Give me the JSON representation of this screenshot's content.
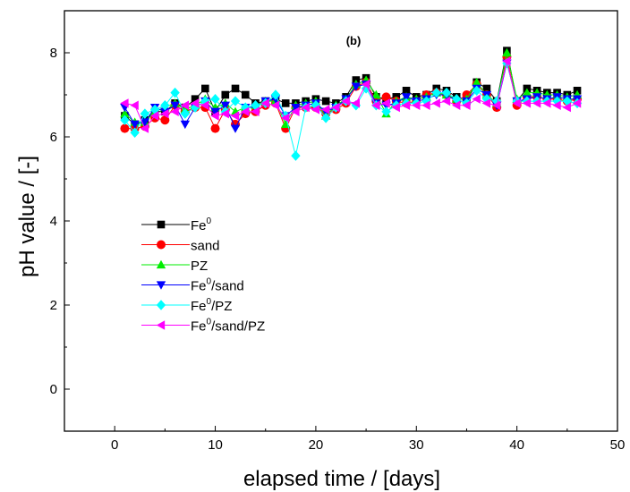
{
  "chart_data": {
    "type": "scatter",
    "annotation": "(b)",
    "xlabel": "elapsed time / [days]",
    "ylabel": "pH value / [-]",
    "xlim": [
      -5,
      50
    ],
    "ylim": [
      -1,
      9
    ],
    "xticks": [
      0,
      10,
      20,
      30,
      40,
      50
    ],
    "yticks": [
      0,
      2,
      4,
      6,
      8
    ],
    "legend_position": "lower-left",
    "series": [
      {
        "name": "Fe",
        "sup": "0",
        "suffix": "",
        "marker": "square",
        "color": "#000000",
        "x": [
          1,
          2,
          3,
          4,
          5,
          6,
          7,
          8,
          9,
          10,
          11,
          12,
          13,
          14,
          15,
          16,
          17,
          18,
          19,
          20,
          21,
          22,
          23,
          24,
          25,
          26,
          27,
          28,
          29,
          30,
          31,
          32,
          33,
          34,
          35,
          36,
          37,
          38,
          39,
          40,
          41,
          42,
          43,
          44,
          45,
          46
        ],
        "y": [
          6.5,
          6.3,
          6.4,
          6.6,
          6.6,
          6.8,
          6.7,
          6.9,
          7.15,
          6.6,
          7.0,
          7.15,
          7.0,
          6.8,
          6.85,
          6.9,
          6.8,
          6.8,
          6.85,
          6.9,
          6.85,
          6.8,
          6.95,
          7.35,
          7.4,
          6.95,
          6.9,
          6.95,
          7.1,
          6.95,
          7.0,
          7.15,
          7.1,
          6.95,
          6.85,
          7.3,
          7.15,
          6.85,
          8.05,
          6.85,
          7.15,
          7.1,
          7.05,
          7.05,
          7.0,
          7.1
        ]
      },
      {
        "name": "sand",
        "sup": "",
        "suffix": "",
        "marker": "circle",
        "color": "#ff0000",
        "x": [
          1,
          2,
          3,
          4,
          5,
          6,
          7,
          8,
          9,
          10,
          11,
          12,
          13,
          14,
          15,
          16,
          17,
          18,
          19,
          20,
          21,
          22,
          23,
          24,
          25,
          26,
          27,
          28,
          29,
          30,
          31,
          32,
          33,
          34,
          35,
          36,
          37,
          38,
          39,
          40,
          41,
          42,
          43,
          44,
          45,
          46
        ],
        "y": [
          6.2,
          6.2,
          6.25,
          6.45,
          6.4,
          6.75,
          6.6,
          6.7,
          6.7,
          6.2,
          6.65,
          6.3,
          6.55,
          6.6,
          6.75,
          6.8,
          6.2,
          6.7,
          6.7,
          6.7,
          6.55,
          6.65,
          6.8,
          7.2,
          7.3,
          6.85,
          6.95,
          6.85,
          6.8,
          6.85,
          7.0,
          7.05,
          7.0,
          6.85,
          7.0,
          7.25,
          7.0,
          6.7,
          7.9,
          6.75,
          6.95,
          6.95,
          6.9,
          6.9,
          6.85,
          6.9
        ]
      },
      {
        "name": "PZ",
        "sup": "",
        "suffix": "",
        "marker": "triangle-up",
        "color": "#00ee00",
        "x": [
          1,
          2,
          3,
          4,
          5,
          6,
          7,
          8,
          9,
          10,
          11,
          12,
          13,
          14,
          15,
          16,
          17,
          18,
          19,
          20,
          21,
          22,
          23,
          24,
          25,
          26,
          27,
          28,
          29,
          30,
          31,
          32,
          33,
          34,
          35,
          36,
          37,
          38,
          39,
          40,
          41,
          42,
          43,
          44,
          45,
          46
        ],
        "y": [
          6.55,
          6.35,
          6.35,
          6.6,
          6.7,
          6.8,
          6.65,
          6.75,
          6.9,
          6.7,
          6.8,
          6.6,
          6.7,
          6.75,
          6.85,
          6.85,
          6.3,
          6.75,
          6.8,
          6.85,
          6.5,
          6.75,
          6.9,
          7.25,
          7.35,
          7.0,
          6.55,
          6.85,
          6.95,
          6.9,
          6.95,
          7.05,
          7.0,
          6.9,
          6.9,
          7.3,
          7.0,
          6.8,
          8.0,
          6.9,
          7.05,
          7.05,
          7.0,
          7.0,
          6.95,
          7.0
        ]
      },
      {
        "name": "Fe",
        "sup": "0",
        "suffix": "/sand",
        "marker": "triangle-down",
        "color": "#0000ff",
        "x": [
          1,
          2,
          3,
          4,
          5,
          6,
          7,
          8,
          9,
          10,
          11,
          12,
          13,
          14,
          15,
          16,
          17,
          18,
          19,
          20,
          21,
          22,
          23,
          24,
          25,
          26,
          27,
          28,
          29,
          30,
          31,
          32,
          33,
          34,
          35,
          36,
          37,
          38,
          39,
          40,
          41,
          42,
          43,
          44,
          45,
          46
        ],
        "y": [
          6.7,
          6.3,
          6.35,
          6.7,
          6.6,
          6.75,
          6.3,
          6.7,
          6.85,
          6.6,
          6.75,
          6.2,
          6.7,
          6.7,
          6.85,
          6.9,
          6.5,
          6.7,
          6.75,
          6.8,
          6.6,
          6.7,
          6.9,
          7.2,
          7.25,
          6.8,
          6.75,
          6.8,
          6.95,
          6.85,
          6.9,
          7.0,
          7.0,
          6.85,
          6.85,
          7.15,
          7.0,
          6.75,
          7.75,
          6.85,
          6.9,
          6.95,
          6.9,
          6.95,
          6.9,
          6.9
        ]
      },
      {
        "name": "Fe",
        "sup": "0",
        "suffix": "/PZ",
        "marker": "diamond",
        "color": "#00ffff",
        "x": [
          1,
          2,
          3,
          4,
          5,
          6,
          7,
          8,
          9,
          10,
          11,
          12,
          13,
          14,
          15,
          16,
          17,
          18,
          19,
          20,
          21,
          22,
          23,
          24,
          25,
          26,
          27,
          28,
          29,
          30,
          31,
          32,
          33,
          34,
          35,
          36,
          37,
          38,
          39,
          40,
          41,
          42,
          43,
          44,
          45,
          46
        ],
        "y": [
          6.4,
          6.1,
          6.55,
          6.65,
          6.75,
          7.05,
          6.55,
          6.7,
          6.85,
          6.9,
          6.6,
          6.85,
          6.7,
          6.75,
          6.8,
          7.0,
          6.5,
          5.55,
          6.7,
          6.75,
          6.45,
          6.7,
          6.85,
          6.75,
          7.15,
          6.75,
          6.6,
          6.75,
          6.8,
          6.8,
          6.85,
          7.05,
          7.05,
          6.9,
          6.8,
          7.1,
          6.9,
          6.85,
          7.75,
          6.85,
          6.85,
          6.85,
          6.85,
          6.85,
          6.85,
          6.8
        ]
      },
      {
        "name": "Fe",
        "sup": "0",
        "suffix": "/sand/PZ",
        "marker": "triangle-left",
        "color": "#ff00ff",
        "x": [
          1,
          2,
          3,
          4,
          5,
          6,
          7,
          8,
          9,
          10,
          11,
          12,
          13,
          14,
          15,
          16,
          17,
          18,
          19,
          20,
          21,
          22,
          23,
          24,
          25,
          26,
          27,
          28,
          29,
          30,
          31,
          32,
          33,
          34,
          35,
          36,
          37,
          38,
          39,
          40,
          41,
          42,
          43,
          44,
          45,
          46
        ],
        "y": [
          6.8,
          6.75,
          6.2,
          6.5,
          6.55,
          6.6,
          6.75,
          6.8,
          6.75,
          6.5,
          6.55,
          6.5,
          6.6,
          6.6,
          6.8,
          6.75,
          6.45,
          6.6,
          6.7,
          6.65,
          6.65,
          6.7,
          6.85,
          6.8,
          7.25,
          6.75,
          6.8,
          6.7,
          6.75,
          6.75,
          6.75,
          6.8,
          6.85,
          6.75,
          6.75,
          6.9,
          6.8,
          6.75,
          7.8,
          6.8,
          6.8,
          6.8,
          6.8,
          6.75,
          6.7,
          6.8
        ]
      }
    ]
  }
}
